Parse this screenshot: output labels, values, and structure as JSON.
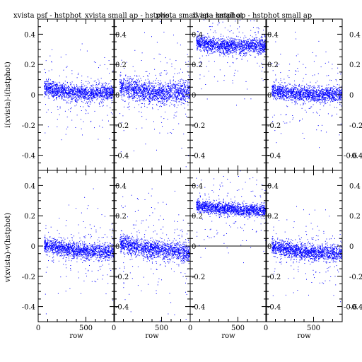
{
  "chart_data": {
    "type": "scatter",
    "colors": {
      "points": "#0000ff",
      "axes": "#000000",
      "zero_line": "#000000"
    },
    "column_titles": [
      "xvista psf - hstphot",
      "xvista small ap - hstphot",
      "xvista small ap - hstphot",
      "xvista small ap - hstphot small ap"
    ],
    "row_ylabels": [
      "i(xvista)-i(hstphot)",
      "v(xvista)-v(hstphot)"
    ],
    "xlabel": "row",
    "xlim": [
      0,
      800
    ],
    "ylim": [
      -0.5,
      0.5
    ],
    "x_ticks": [
      0,
      500
    ],
    "y_ticks": [
      -0.4,
      -0.2,
      0,
      0.2,
      0.4
    ],
    "y_tick_labels": [
      "-0.4",
      "-0.2",
      "0",
      "0.2",
      "0.4"
    ],
    "right_axis_tick_labels": [
      "-0.6",
      "-0.4",
      "-0.2",
      "0",
      "0.2",
      "0.4"
    ],
    "zero_line_panels": [
      2,
      6
    ],
    "panels": [
      {
        "id": 0,
        "row": 0,
        "col": 0,
        "trend_start": 0.05,
        "trend_end": 0.02,
        "trend_dip": 0.04,
        "spread": 0.025,
        "outlier_scatter": 0.15
      },
      {
        "id": 1,
        "row": 0,
        "col": 1,
        "trend_start": 0.06,
        "trend_end": 0.02,
        "trend_dip": 0.04,
        "spread": 0.035,
        "outlier_scatter": 0.2
      },
      {
        "id": 2,
        "row": 0,
        "col": 2,
        "trend_start": 0.35,
        "trend_end": 0.33,
        "trend_dip": 0.03,
        "spread": 0.025,
        "outlier_scatter": 0.15
      },
      {
        "id": 3,
        "row": 0,
        "col": 3,
        "trend_start": 0.03,
        "trend_end": 0.01,
        "trend_dip": 0.03,
        "spread": 0.025,
        "outlier_scatter": 0.15
      },
      {
        "id": 4,
        "row": 1,
        "col": 0,
        "trend_start": 0.01,
        "trend_end": -0.04,
        "trend_dip": 0.02,
        "spread": 0.025,
        "outlier_scatter": 0.15
      },
      {
        "id": 5,
        "row": 1,
        "col": 1,
        "trend_start": 0.02,
        "trend_end": -0.04,
        "trend_dip": 0.02,
        "spread": 0.03,
        "outlier_scatter": 0.18
      },
      {
        "id": 6,
        "row": 1,
        "col": 2,
        "trend_start": 0.27,
        "trend_end": 0.24,
        "trend_dip": 0.02,
        "spread": 0.02,
        "outlier_scatter": 0.15
      },
      {
        "id": 7,
        "row": 1,
        "col": 3,
        "trend_start": 0.0,
        "trend_end": -0.05,
        "trend_dip": 0.02,
        "spread": 0.025,
        "outlier_scatter": 0.15
      }
    ]
  }
}
